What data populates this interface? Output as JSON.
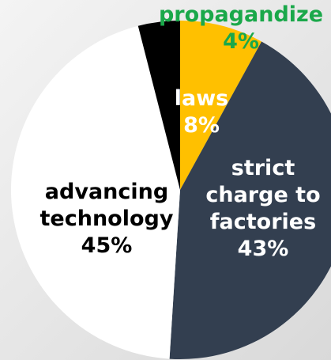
{
  "chart_data": {
    "type": "pie",
    "categories": [
      "laws",
      "strict charge to factories",
      "advancing technology",
      "propagandize"
    ],
    "values": [
      8,
      43,
      45,
      4
    ],
    "value_labels": [
      "8%",
      "43%",
      "45%",
      "4%"
    ],
    "colors": [
      "#ffc000",
      "#333f50",
      "#ffffff",
      "#000000"
    ],
    "label_colors": [
      "#ffffff",
      "#ffffff",
      "#000000",
      "#1aa84a"
    ]
  }
}
